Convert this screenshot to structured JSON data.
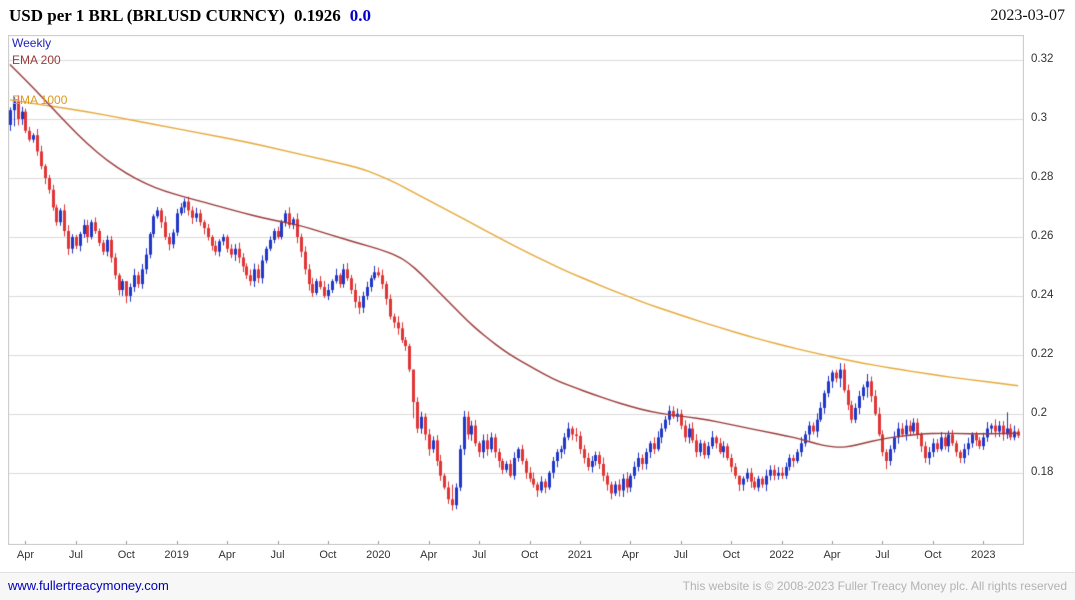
{
  "header": {
    "title": "USD per 1 BRL (BRLUSD CURNCY)",
    "last_price": "0.1926",
    "change": "0.0",
    "date": "2023-03-07"
  },
  "legend": {
    "frequency": "Weekly",
    "ema_short": "EMA 200",
    "ema_long": "EMA 1000"
  },
  "footer": {
    "link": "www.fullertreacymoney.com",
    "copyright": "This website is © 2008-2023 Fuller Treacy Money plc. All rights reserved"
  },
  "colors": {
    "up_candle": "#2137c8",
    "down_candle": "#e03535",
    "ema200": "#9a3a3a",
    "ema1000": "#e6a93a",
    "grid": "#dcdcdc",
    "plot_border": "#c8c8c8",
    "tick": "#999999"
  },
  "chart_data": {
    "type": "candlestick",
    "instrument": "BRLUSD CURNCY",
    "frequency": "Weekly",
    "ylim": [
      0.1555,
      0.3285
    ],
    "y_ticks": [
      {
        "value": 0.32,
        "label": "0.32"
      },
      {
        "value": 0.3,
        "label": "0.3"
      },
      {
        "value": 0.28,
        "label": "0.28"
      },
      {
        "value": 0.26,
        "label": "0.26"
      },
      {
        "value": 0.24,
        "label": "0.24"
      },
      {
        "value": 0.22,
        "label": "0.22"
      },
      {
        "value": 0.2,
        "label": "0.2"
      },
      {
        "value": 0.18,
        "label": "0.18"
      }
    ],
    "x_ticks": [
      {
        "week": 4,
        "label": "Apr"
      },
      {
        "week": 17,
        "label": "Jul"
      },
      {
        "week": 30,
        "label": "Oct"
      },
      {
        "week": 43,
        "label": "2019"
      },
      {
        "week": 56,
        "label": "Apr"
      },
      {
        "week": 69,
        "label": "Jul"
      },
      {
        "week": 82,
        "label": "Oct"
      },
      {
        "week": 95,
        "label": "2020"
      },
      {
        "week": 108,
        "label": "Apr"
      },
      {
        "week": 121,
        "label": "Jul"
      },
      {
        "week": 134,
        "label": "Oct"
      },
      {
        "week": 147,
        "label": "2021"
      },
      {
        "week": 160,
        "label": "Apr"
      },
      {
        "week": 173,
        "label": "Jul"
      },
      {
        "week": 186,
        "label": "Oct"
      },
      {
        "week": 199,
        "label": "2022"
      },
      {
        "week": 212,
        "label": "Apr"
      },
      {
        "week": 225,
        "label": "Jul"
      },
      {
        "week": 238,
        "label": "Oct"
      },
      {
        "week": 251,
        "label": "2023"
      }
    ],
    "first_open": 0.298,
    "default_wick": 0.0016,
    "closes": [
      0.303,
      0.306,
      0.3,
      0.3025,
      0.296,
      0.293,
      0.2945,
      0.289,
      0.284,
      0.28,
      0.276,
      0.27,
      0.265,
      0.269,
      0.262,
      0.256,
      0.26,
      0.257,
      0.261,
      0.264,
      0.26,
      0.265,
      0.262,
      0.258,
      0.255,
      0.259,
      0.253,
      0.247,
      0.242,
      0.245,
      0.24,
      0.243,
      0.247,
      0.244,
      0.249,
      0.254,
      0.261,
      0.267,
      0.269,
      0.265,
      0.26,
      0.2575,
      0.2615,
      0.268,
      0.27,
      0.272,
      0.269,
      0.2665,
      0.268,
      0.265,
      0.263,
      0.26,
      0.257,
      0.255,
      0.2585,
      0.26,
      0.256,
      0.254,
      0.256,
      0.253,
      0.25,
      0.247,
      0.245,
      0.249,
      0.246,
      0.252,
      0.256,
      0.259,
      0.262,
      0.26,
      0.265,
      0.268,
      0.264,
      0.266,
      0.26,
      0.255,
      0.249,
      0.244,
      0.241,
      0.245,
      0.243,
      0.24,
      0.242,
      0.245,
      0.247,
      0.244,
      0.249,
      0.246,
      0.242,
      0.238,
      0.236,
      0.24,
      0.243,
      0.246,
      0.248,
      0.247,
      0.244,
      0.239,
      0.233,
      0.231,
      0.229,
      0.225,
      0.223,
      0.215,
      0.204,
      0.195,
      0.199,
      0.193,
      0.188,
      0.191,
      0.184,
      0.179,
      0.175,
      0.171,
      0.169,
      0.175,
      0.188,
      0.199,
      0.193,
      0.196,
      0.19,
      0.187,
      0.191,
      0.188,
      0.192,
      0.187,
      0.184,
      0.181,
      0.183,
      0.179,
      0.185,
      0.188,
      0.184,
      0.18,
      0.178,
      0.176,
      0.174,
      0.177,
      0.175,
      0.18,
      0.184,
      0.187,
      0.188,
      0.192,
      0.195,
      0.193,
      0.1925,
      0.188,
      0.185,
      0.182,
      0.184,
      0.186,
      0.183,
      0.179,
      0.176,
      0.173,
      0.176,
      0.174,
      0.178,
      0.175,
      0.179,
      0.182,
      0.185,
      0.183,
      0.187,
      0.19,
      0.188,
      0.192,
      0.195,
      0.198,
      0.201,
      0.199,
      0.2,
      0.196,
      0.192,
      0.195,
      0.191,
      0.187,
      0.19,
      0.186,
      0.189,
      0.192,
      0.19,
      0.187,
      0.189,
      0.185,
      0.182,
      0.179,
      0.176,
      0.178,
      0.18,
      0.177,
      0.175,
      0.178,
      0.176,
      0.179,
      0.181,
      0.179,
      0.18,
      0.179,
      0.182,
      0.185,
      0.184,
      0.187,
      0.19,
      0.193,
      0.196,
      0.194,
      0.198,
      0.202,
      0.207,
      0.211,
      0.214,
      0.212,
      0.215,
      0.208,
      0.203,
      0.198,
      0.202,
      0.206,
      0.209,
      0.211,
      0.206,
      0.2,
      0.193,
      0.187,
      0.184,
      0.188,
      0.192,
      0.195,
      0.193,
      0.196,
      0.194,
      0.197,
      0.193,
      0.189,
      0.185,
      0.187,
      0.19,
      0.188,
      0.192,
      0.189,
      0.193,
      0.19,
      0.187,
      0.185,
      0.188,
      0.19,
      0.193,
      0.191,
      0.189,
      0.192,
      0.195,
      0.196,
      0.194,
      0.196,
      0.193,
      0.195,
      0.192,
      0.194,
      0.1926
    ],
    "wick_overrides": {
      "1": [
        0.3075,
        0.2975
      ],
      "30": [
        0.245,
        0.2375
      ],
      "90": [
        0.24,
        0.2338
      ],
      "104": [
        0.215,
        0.1985
      ],
      "114": [
        0.176,
        0.1672
      ],
      "117": [
        0.201,
        0.186
      ],
      "136": [
        0.1768,
        0.1718
      ],
      "155": [
        0.177,
        0.171
      ],
      "188": [
        0.179,
        0.1738
      ],
      "214": [
        0.2172,
        0.209
      ],
      "221": [
        0.2135,
        0.2055
      ],
      "226": [
        0.188,
        0.1812
      ],
      "257": [
        0.2005,
        0.1915
      ]
    },
    "ema200_points": [
      [
        0,
        0.3185
      ],
      [
        5,
        0.312
      ],
      [
        10,
        0.305
      ],
      [
        15,
        0.298
      ],
      [
        20,
        0.2915
      ],
      [
        25,
        0.286
      ],
      [
        30,
        0.2815
      ],
      [
        35,
        0.278
      ],
      [
        40,
        0.2755
      ],
      [
        45,
        0.2735
      ],
      [
        50,
        0.2718
      ],
      [
        55,
        0.27
      ],
      [
        60,
        0.2682
      ],
      [
        65,
        0.2665
      ],
      [
        70,
        0.2652
      ],
      [
        75,
        0.2638
      ],
      [
        80,
        0.2618
      ],
      [
        85,
        0.2598
      ],
      [
        90,
        0.2578
      ],
      [
        95,
        0.256
      ],
      [
        100,
        0.2535
      ],
      [
        103,
        0.251
      ],
      [
        106,
        0.2475
      ],
      [
        109,
        0.2435
      ],
      [
        112,
        0.2395
      ],
      [
        115,
        0.2355
      ],
      [
        118,
        0.2315
      ],
      [
        121,
        0.228
      ],
      [
        124,
        0.2248
      ],
      [
        127,
        0.2218
      ],
      [
        130,
        0.2192
      ],
      [
        134,
        0.2162
      ],
      [
        138,
        0.2132
      ],
      [
        142,
        0.2107
      ],
      [
        146,
        0.2087
      ],
      [
        150,
        0.2068
      ],
      [
        155,
        0.2045
      ],
      [
        160,
        0.2025
      ],
      [
        165,
        0.2008
      ],
      [
        170,
        0.1997
      ],
      [
        175,
        0.1989
      ],
      [
        180,
        0.1979
      ],
      [
        185,
        0.1966
      ],
      [
        190,
        0.1952
      ],
      [
        195,
        0.1939
      ],
      [
        200,
        0.1926
      ],
      [
        204,
        0.1914
      ],
      [
        208,
        0.1898
      ],
      [
        211,
        0.189
      ],
      [
        214,
        0.1886
      ],
      [
        217,
        0.189
      ],
      [
        220,
        0.19
      ],
      [
        224,
        0.1912
      ],
      [
        228,
        0.1921
      ],
      [
        232,
        0.1928
      ],
      [
        236,
        0.1932
      ],
      [
        240,
        0.1934
      ],
      [
        245,
        0.1933
      ],
      [
        250,
        0.1932
      ],
      [
        255,
        0.1933
      ],
      [
        260,
        0.1934
      ]
    ],
    "ema1000_points": [
      [
        0,
        0.3065
      ],
      [
        10,
        0.3045
      ],
      [
        20,
        0.3025
      ],
      [
        30,
        0.3
      ],
      [
        40,
        0.2975
      ],
      [
        50,
        0.295
      ],
      [
        60,
        0.2925
      ],
      [
        70,
        0.2895
      ],
      [
        80,
        0.2865
      ],
      [
        90,
        0.2835
      ],
      [
        95,
        0.281
      ],
      [
        100,
        0.278
      ],
      [
        105,
        0.2745
      ],
      [
        110,
        0.271
      ],
      [
        115,
        0.2675
      ],
      [
        120,
        0.264
      ],
      [
        125,
        0.2605
      ],
      [
        130,
        0.257
      ],
      [
        135,
        0.2537
      ],
      [
        140,
        0.2505
      ],
      [
        145,
        0.2475
      ],
      [
        150,
        0.2448
      ],
      [
        155,
        0.242
      ],
      [
        160,
        0.2395
      ],
      [
        165,
        0.237
      ],
      [
        170,
        0.2348
      ],
      [
        175,
        0.2326
      ],
      [
        180,
        0.2305
      ],
      [
        185,
        0.2285
      ],
      [
        190,
        0.2265
      ],
      [
        195,
        0.2247
      ],
      [
        200,
        0.223
      ],
      [
        205,
        0.2214
      ],
      [
        210,
        0.2199
      ],
      [
        215,
        0.2185
      ],
      [
        220,
        0.2172
      ],
      [
        225,
        0.216
      ],
      [
        230,
        0.2149
      ],
      [
        235,
        0.2139
      ],
      [
        240,
        0.2129
      ],
      [
        245,
        0.212
      ],
      [
        250,
        0.2112
      ],
      [
        255,
        0.2104
      ],
      [
        260,
        0.2095
      ]
    ]
  }
}
